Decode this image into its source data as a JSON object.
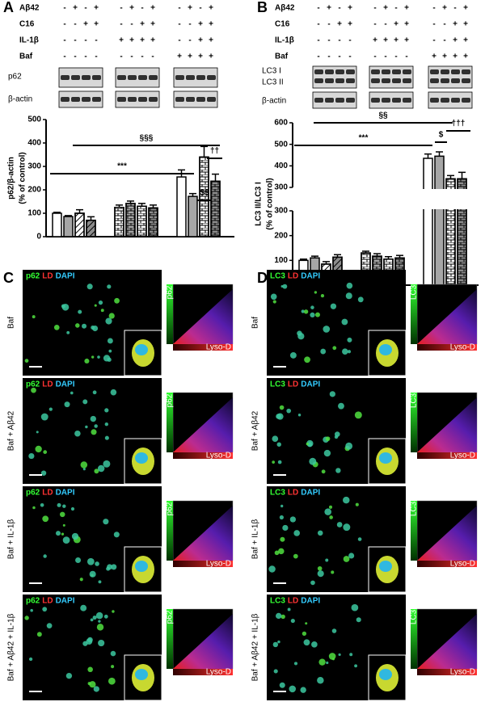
{
  "panels": [
    "A",
    "B",
    "C",
    "D"
  ],
  "blots": [
    {
      "conditions": [
        {
          "label": "Aβ42",
          "marks": [
            "-",
            "+",
            "-",
            "+",
            "-",
            "+",
            "-",
            "+",
            "-",
            "+",
            "-",
            "+"
          ]
        },
        {
          "label": "C16",
          "marks": [
            "-",
            "-",
            "+",
            "+",
            "-",
            "-",
            "+",
            "+",
            "-",
            "-",
            "+",
            "+"
          ]
        },
        {
          "label": "IL-1β",
          "marks": [
            "-",
            "-",
            "-",
            "-",
            "+",
            "+",
            "+",
            "+",
            "-",
            "-",
            "+",
            "+"
          ]
        },
        {
          "label": "Baf",
          "marks": [
            "-",
            "-",
            "-",
            "-",
            "-",
            "-",
            "-",
            "-",
            "+",
            "+",
            "+",
            "+"
          ]
        }
      ],
      "bands": [
        "p62",
        "β-actin"
      ]
    },
    {
      "conditions": [
        {
          "label": "Aβ42",
          "marks": [
            "-",
            "+",
            "-",
            "+",
            "-",
            "+",
            "-",
            "+",
            "-",
            "+",
            "-",
            "+"
          ]
        },
        {
          "label": "C16",
          "marks": [
            "-",
            "-",
            "+",
            "+",
            "-",
            "-",
            "+",
            "+",
            "-",
            "-",
            "+",
            "+"
          ]
        },
        {
          "label": "IL-1β",
          "marks": [
            "-",
            "-",
            "-",
            "-",
            "+",
            "+",
            "+",
            "+",
            "-",
            "-",
            "+",
            "+"
          ]
        },
        {
          "label": "Baf",
          "marks": [
            "-",
            "-",
            "-",
            "-",
            "-",
            "-",
            "-",
            "-",
            "+",
            "+",
            "+",
            "+"
          ]
        }
      ],
      "bands": [
        "LC3 I",
        "LC3 II",
        "β-actin"
      ]
    }
  ],
  "chart_data": [
    {
      "type": "bar",
      "ylabel": [
        "p62/β-actin",
        "(% of control)"
      ],
      "values": [
        100,
        86,
        100,
        70,
        125,
        142,
        130,
        123,
        255,
        172,
        340,
        237
      ],
      "errors": [
        4,
        4,
        15,
        15,
        10,
        10,
        12,
        12,
        30,
        12,
        45,
        30
      ],
      "colors": [
        "#ffffff",
        "#a6a6a6",
        "#ffffff",
        "#8c8c8c",
        "#ffffff",
        "#a6a6a6",
        "#ffffff",
        "#8c8c8c",
        "#ffffff",
        "#a6a6a6",
        "#ffffff",
        "#8c8c8c"
      ],
      "patterns": [
        null,
        null,
        "hatch",
        "hatch",
        "brick",
        "brick",
        "brick",
        "brick",
        null,
        null,
        "brick",
        "brick"
      ],
      "ylim": [
        0,
        500
      ],
      "yticks": [
        0,
        100,
        200,
        300,
        400,
        500
      ],
      "annotations": [
        "§§§",
        "***",
        "$$",
        "††"
      ]
    },
    {
      "type": "broken-bar",
      "ylabel": [
        "LC3 II/LC3 I",
        "(% of control)"
      ],
      "values": [
        100,
        110,
        85,
        113,
        130,
        117,
        105,
        110,
        435,
        445,
        340,
        340
      ],
      "errors": [
        5,
        7,
        10,
        10,
        7,
        10,
        10,
        10,
        20,
        20,
        15,
        30
      ],
      "colors": [
        "#ffffff",
        "#a6a6a6",
        "#ffffff",
        "#8c8c8c",
        "#ffffff",
        "#a6a6a6",
        "#ffffff",
        "#8c8c8c",
        "#ffffff",
        "#a6a6a6",
        "#ffffff",
        "#8c8c8c"
      ],
      "patterns": [
        null,
        null,
        "hatch",
        "hatch",
        "brick",
        "brick",
        "brick",
        "brick",
        null,
        null,
        "brick",
        "brick"
      ],
      "ylim": [
        0,
        300
      ],
      "yticks": [
        0,
        100,
        200,
        300
      ],
      "y2lim": [
        300,
        600
      ],
      "y2ticks": [
        300,
        400,
        500,
        600
      ],
      "annotations": [
        "§§",
        "***",
        "$",
        "†††"
      ]
    }
  ],
  "imaging": [
    {
      "rows": [
        "Baf",
        "Baf + Aβ42",
        "Baf + IL-1β",
        "Baf + Aβ42 + IL-1β"
      ],
      "stain": [
        "p62",
        "LD",
        "DAPI"
      ],
      "plot_y": "p62",
      "plot_x": "Lyso-D"
    },
    {
      "rows": [
        "Baf",
        "Baf + Aβ42",
        "Baf + IL-1β",
        "Baf + Aβ42 + IL-1β"
      ],
      "stain": [
        "LC3",
        "LD",
        "DAPI"
      ],
      "plot_y": "LC3",
      "plot_x": "Lyso-D"
    }
  ]
}
